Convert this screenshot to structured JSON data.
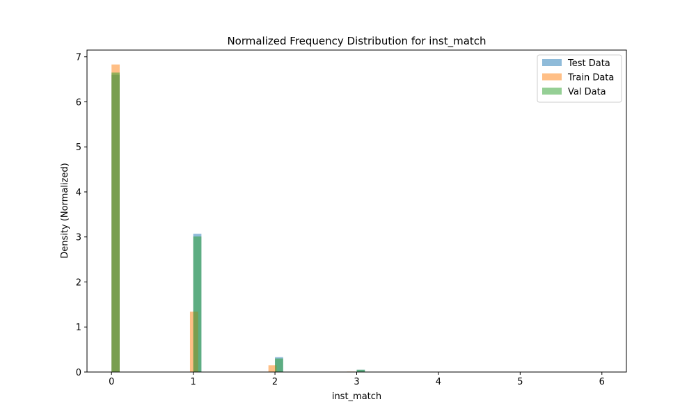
{
  "chart_data": {
    "type": "bar",
    "title": "Normalized Frequency Distribution for inst_match",
    "xlabel": "inst_match",
    "ylabel": "Density (Normalized)",
    "xlim": [
      -0.3,
      6.3
    ],
    "ylim": [
      0,
      7.15
    ],
    "xticks": [
      "0",
      "1",
      "2",
      "3",
      "4",
      "5",
      "6"
    ],
    "yticks": [
      "0",
      "1",
      "2",
      "3",
      "4",
      "5",
      "6",
      "7"
    ],
    "grid": false,
    "legend_position": "top-right",
    "bin_width": 0.1,
    "series": [
      {
        "name": "Test Data",
        "color": "#1f77b4",
        "opacity": 0.5,
        "bins": [
          {
            "left": 0.0,
            "value": 6.6
          },
          {
            "left": 1.0,
            "value": 3.07
          },
          {
            "left": 2.0,
            "value": 0.33
          },
          {
            "left": 3.0,
            "value": 0.05
          }
        ]
      },
      {
        "name": "Train Data",
        "color": "#ff7f0e",
        "opacity": 0.5,
        "bins": [
          {
            "left": 0.0,
            "value": 6.83
          },
          {
            "left": 0.96,
            "value": 1.34
          },
          {
            "left": 1.92,
            "value": 0.15
          },
          {
            "left": 2.88,
            "value": 0.01
          }
        ]
      },
      {
        "name": "Val Data",
        "color": "#2ca02c",
        "opacity": 0.5,
        "bins": [
          {
            "left": 0.0,
            "value": 6.65
          },
          {
            "left": 1.0,
            "value": 3.01
          },
          {
            "left": 2.0,
            "value": 0.3
          },
          {
            "left": 3.0,
            "value": 0.05
          }
        ]
      }
    ]
  }
}
